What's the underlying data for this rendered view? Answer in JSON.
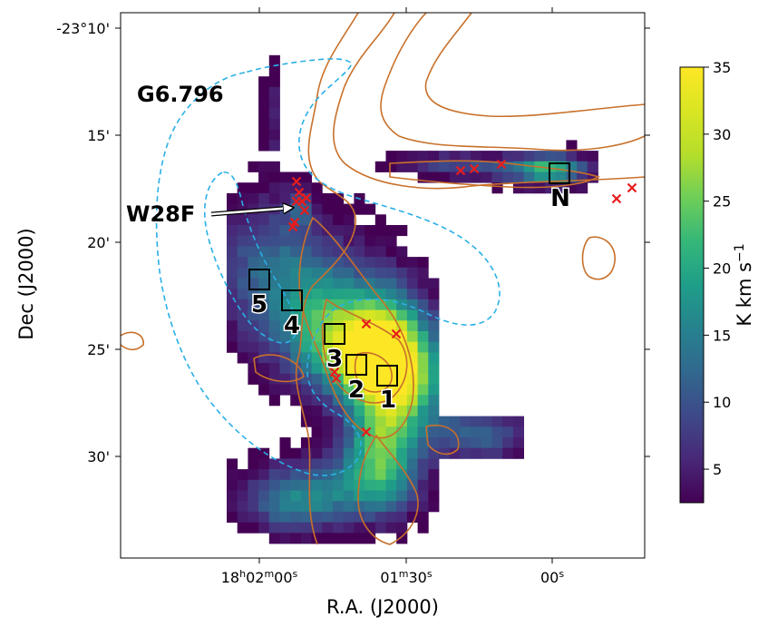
{
  "map": {
    "xlabel": "R.A. (J2000)",
    "ylabel": "Dec (J2000)",
    "x_ticks": [
      {
        "label": "18h02m00s",
        "ra": "18h02m00s"
      },
      {
        "label": "01m30s",
        "ra": "18h01m30s"
      },
      {
        "label": "00s",
        "ra": "18h01m00s"
      }
    ],
    "y_ticks": [
      {
        "label": "-23°10'",
        "dec": -10
      },
      {
        "label": "15'",
        "dec": -15
      },
      {
        "label": "20'",
        "dec": -20
      },
      {
        "label": "25'",
        "dec": -25
      },
      {
        "label": "30'",
        "dec": -30
      }
    ],
    "labels": {
      "snr_g6796": "G6.796",
      "snr_w28f": "W28F",
      "region_1": "1",
      "region_2": "2",
      "region_3": "3",
      "region_4": "4",
      "region_5": "5",
      "region_n": "N"
    },
    "colors": {
      "contour": "#c8702a",
      "dashed_contour": "#2ab0e6",
      "marker": "#e81c1c",
      "box": "#000000"
    }
  },
  "colorbar": {
    "label": "K km s−1",
    "label_base": "K km s",
    "label_sup": "−1",
    "min": 2.5,
    "max": 35,
    "ticks": [
      "5",
      "10",
      "15",
      "20",
      "25",
      "30",
      "35"
    ],
    "colormap": "viridis"
  }
}
